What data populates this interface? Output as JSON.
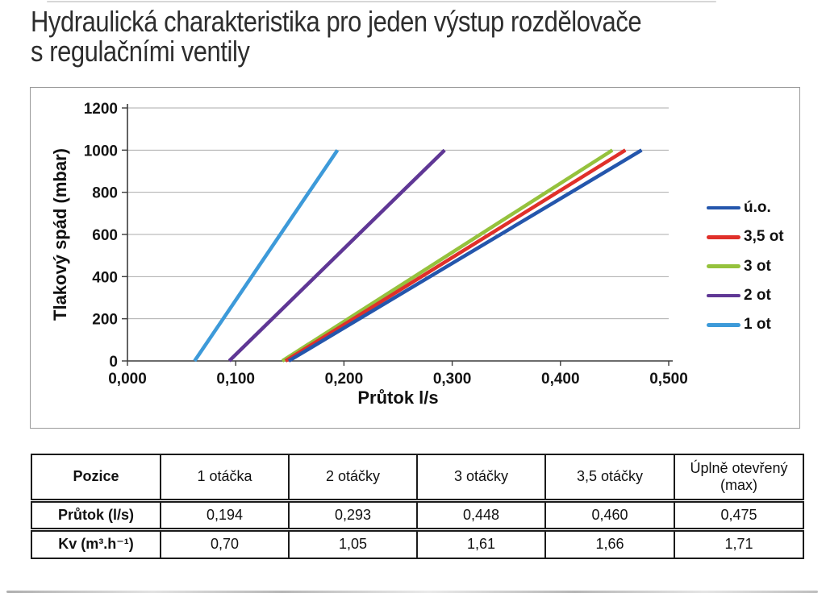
{
  "page": {
    "title_line1": "Hydraulická charakteristika pro jeden výstup rozdělovače",
    "title_line2": "s regulačními ventily"
  },
  "chart_data": {
    "type": "line",
    "title": "",
    "xlabel": "Průtok l/s",
    "ylabel": "Tlakový spád (mbar)",
    "xlim": [
      0,
      0.5
    ],
    "ylim": [
      0,
      1200
    ],
    "x_ticks": [
      0,
      0.1,
      0.2,
      0.3,
      0.4,
      0.5
    ],
    "x_tick_labels": [
      "0,000",
      "0,100",
      "0,200",
      "0,300",
      "0,400",
      "0,500"
    ],
    "y_ticks": [
      0,
      200,
      400,
      600,
      800,
      1000,
      1200
    ],
    "grid": "horizontal",
    "legend_position": "right",
    "axis_color": "#3c3c3c",
    "grid_color": "#ababab",
    "series": [
      {
        "name": "ú.o.",
        "color": "#2456AC",
        "points": [
          [
            0.149,
            0
          ],
          [
            0.475,
            1000
          ]
        ]
      },
      {
        "name": "3,5 ot",
        "color": "#E0302A",
        "points": [
          [
            0.146,
            0
          ],
          [
            0.46,
            1000
          ]
        ]
      },
      {
        "name": "3 ot",
        "color": "#95C23D",
        "points": [
          [
            0.143,
            0
          ],
          [
            0.448,
            1000
          ]
        ]
      },
      {
        "name": "2 ot",
        "color": "#5F3795",
        "points": [
          [
            0.094,
            0
          ],
          [
            0.293,
            1000
          ]
        ]
      },
      {
        "name": "1 ot",
        "color": "#3D9AD9",
        "points": [
          [
            0.062,
            0
          ],
          [
            0.194,
            1000
          ]
        ]
      }
    ]
  },
  "table": {
    "header": [
      "Pozice",
      "1 otáčka",
      "2 otáčky",
      "3 otáčky",
      "3,5 otáčky",
      "Úplně otevřený (max)"
    ],
    "rows": [
      {
        "label": "Průtok (l/s)",
        "values": [
          "0,194",
          "0,293",
          "0,448",
          "0,460",
          "0,475"
        ]
      },
      {
        "label": "Kv (m³.h⁻¹)",
        "values": [
          "0,70",
          "1,05",
          "1,61",
          "1,66",
          "1,71"
        ]
      }
    ]
  }
}
